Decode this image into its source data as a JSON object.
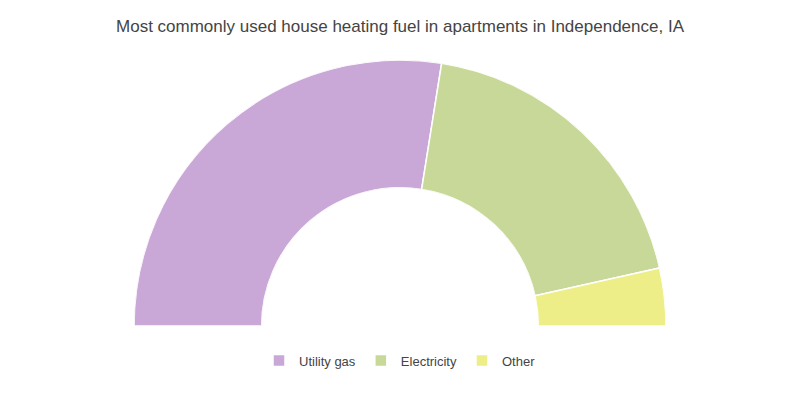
{
  "chart_data": {
    "type": "donut",
    "title": "Most commonly used house heating fuel in apartments in Independence, IA",
    "categories": [
      "Utility gas",
      "Electricity",
      "Other"
    ],
    "values": [
      55,
      38,
      7
    ],
    "colors": [
      "#c9a8d8",
      "#c8d898",
      "#eeee88"
    ],
    "legend": "bottom",
    "data_labels": false
  }
}
